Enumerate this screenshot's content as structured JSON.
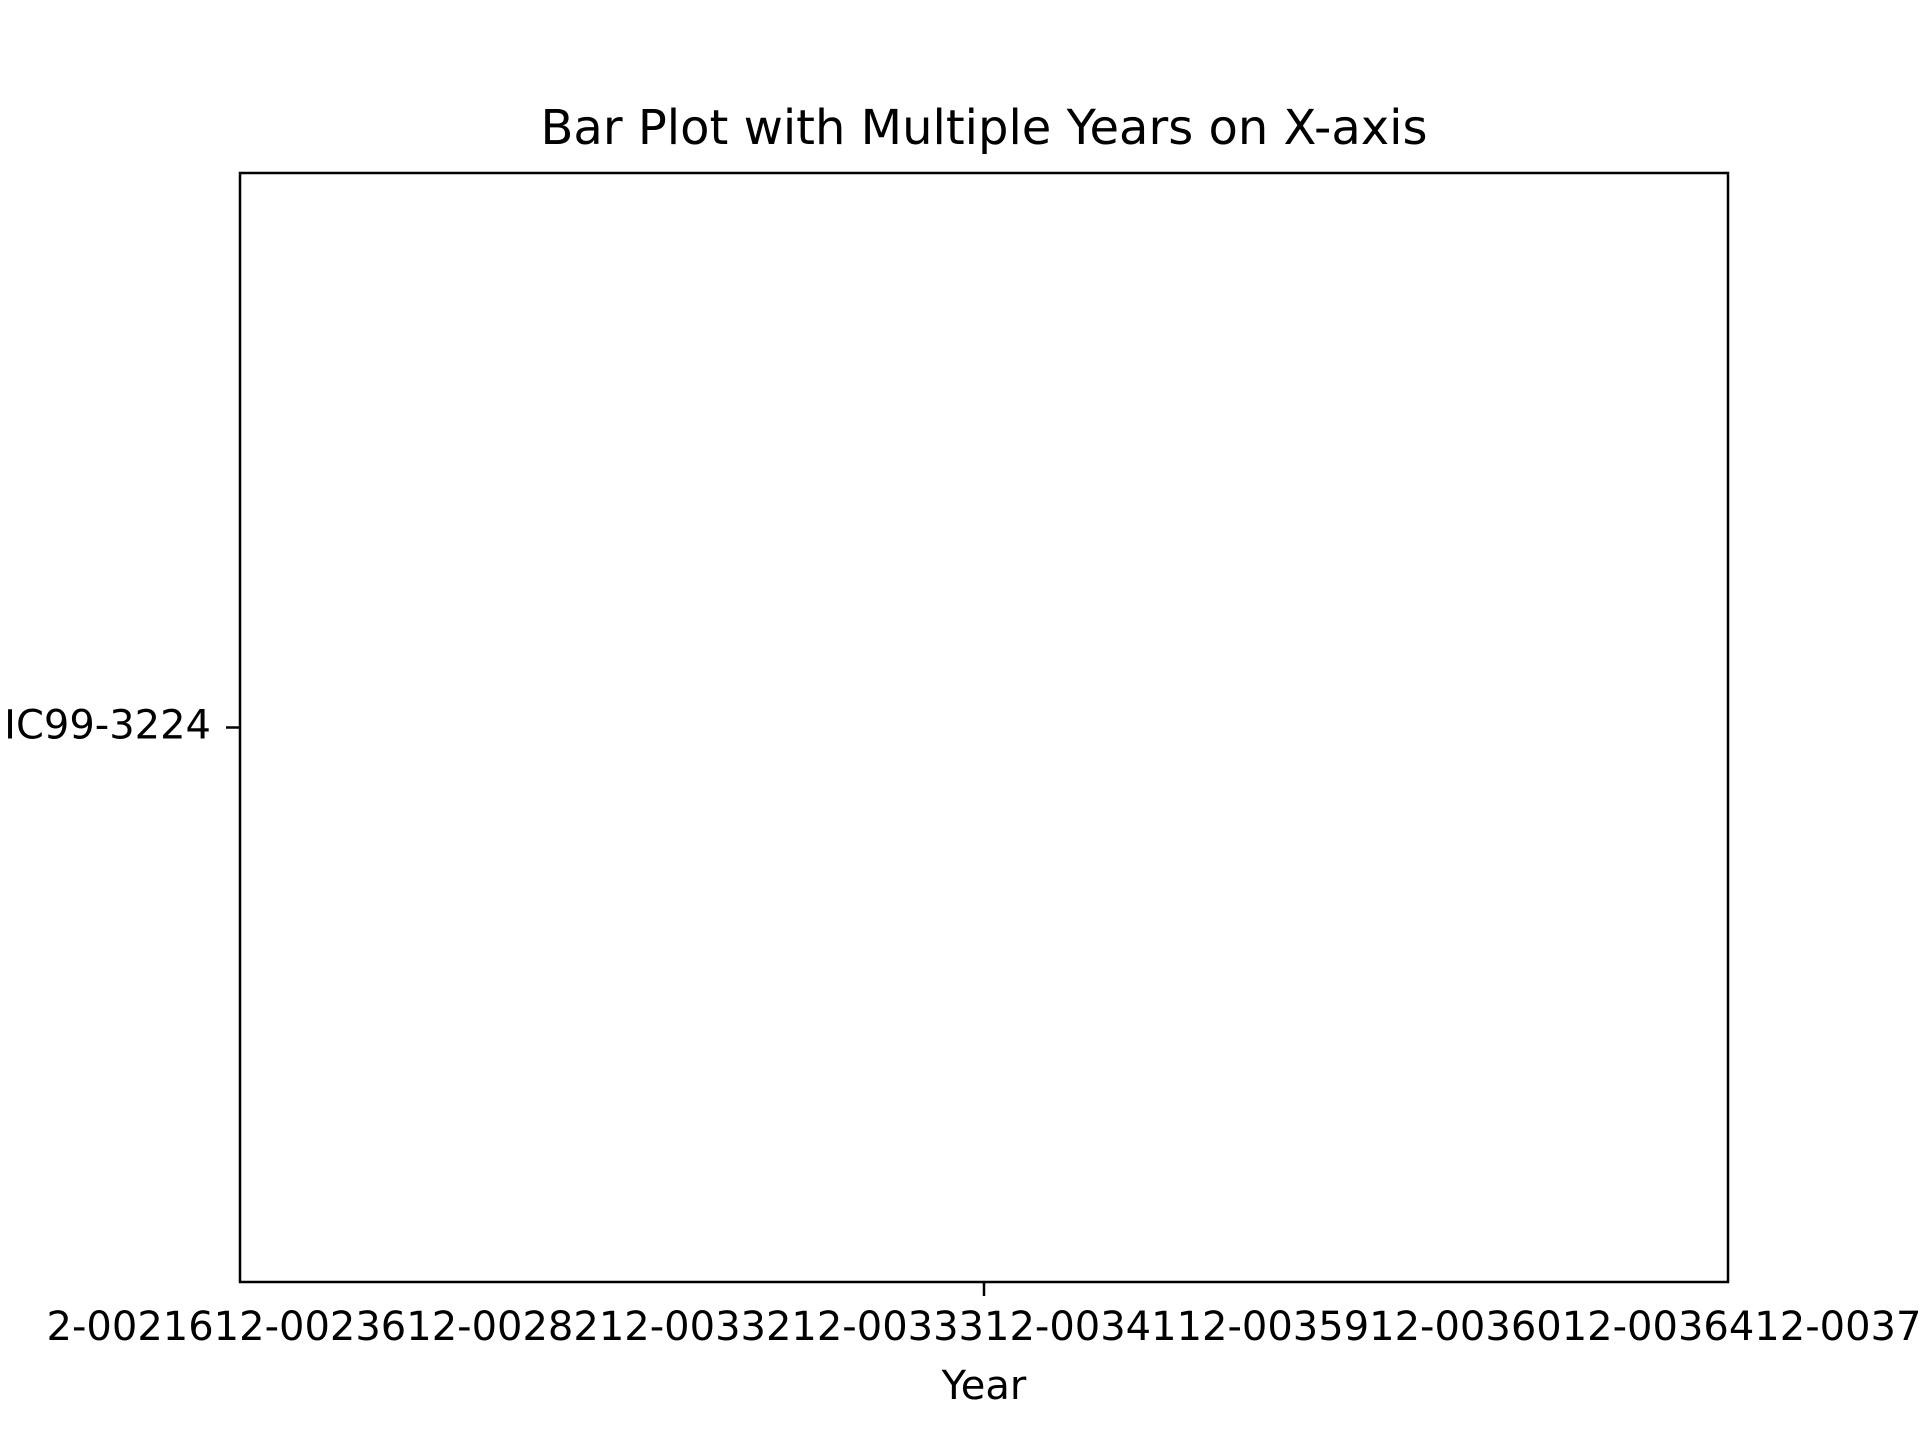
{
  "chart_data": {
    "type": "bar",
    "title": "Bar Plot with Multiple Years on X-axis",
    "x_label": "Year",
    "categories": [
      "2-0021612-0023612-0028212-0033212-0033312-0034112-0035912-0036012-0036412-0037"
    ],
    "y_categories": [
      "IC99-3224"
    ],
    "color": "#1f77b4"
  }
}
